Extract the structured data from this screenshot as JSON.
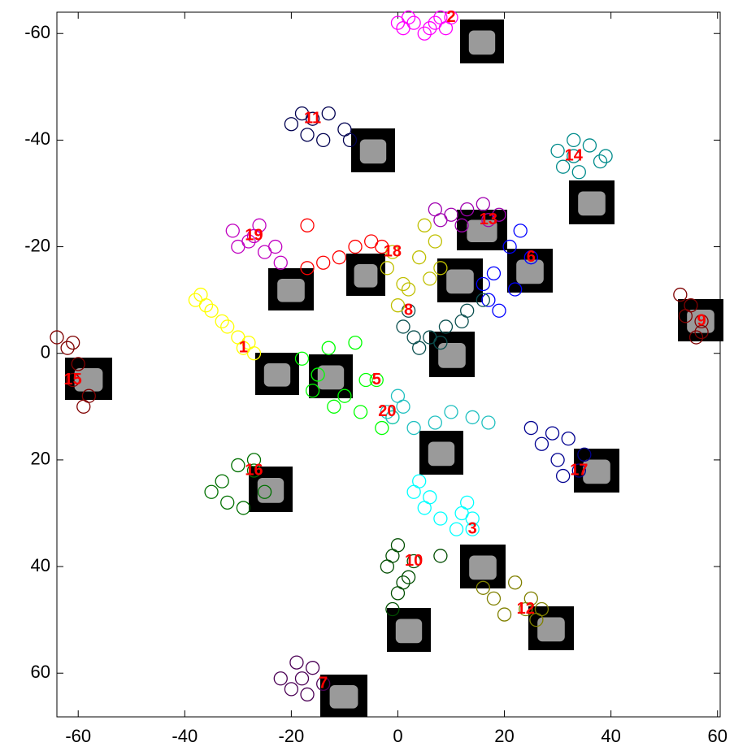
{
  "chart_data": {
    "type": "scatter",
    "xlim": [
      -64,
      60.5
    ],
    "ylim": [
      -64,
      68.2
    ],
    "y_reversed": true,
    "xticks": [
      -60,
      -40,
      -20,
      0,
      20,
      40,
      60
    ],
    "yticks": [
      -60,
      -40,
      -20,
      0,
      20,
      40,
      60
    ],
    "series": [
      {
        "name": "1",
        "color": "#ffff00",
        "x": [
          -29,
          -38,
          -35,
          -32,
          -30,
          -27,
          -36,
          -33,
          -37,
          -28
        ],
        "y": [
          -1,
          -10,
          -8,
          -5,
          -3,
          0,
          -9,
          -6,
          -11,
          -2
        ]
      },
      {
        "name": "2",
        "color": "#ff00ff",
        "x": [
          10,
          0,
          3,
          6,
          9,
          8,
          2,
          5,
          1,
          7
        ],
        "y": [
          -63,
          -62,
          -62,
          -61,
          -61,
          -63,
          -63,
          -60,
          -61,
          -62
        ]
      },
      {
        "name": "3",
        "color": "#00ffff",
        "x": [
          14,
          3,
          5,
          8,
          12,
          13,
          4,
          6,
          14,
          11
        ],
        "y": [
          33,
          26,
          29,
          31,
          30,
          28,
          24,
          27,
          31,
          33
        ]
      },
      {
        "name": "5",
        "color": "#00ff00",
        "x": [
          -4,
          -18,
          -15,
          -13,
          -10,
          -7,
          -3,
          -1,
          -16,
          -12,
          -8,
          -6
        ],
        "y": [
          5,
          1,
          4,
          -1,
          8,
          11,
          14,
          12,
          7,
          10,
          -2,
          5
        ]
      },
      {
        "name": "6",
        "color": "#0000ff",
        "x": [
          25,
          21,
          18,
          17,
          19,
          22,
          16,
          23
        ],
        "y": [
          -18,
          -20,
          -15,
          -10,
          -8,
          -12,
          -13,
          -23
        ]
      },
      {
        "name": "7",
        "color": "#4b0055",
        "x": [
          -14,
          -19,
          -22,
          -17,
          -20,
          -16,
          -18
        ],
        "y": [
          62,
          58,
          61,
          64,
          63,
          59,
          61
        ]
      },
      {
        "name": "8",
        "color": "#0a4f4f",
        "x": [
          2,
          1,
          3,
          4,
          6,
          9,
          13,
          16,
          8,
          12
        ],
        "y": [
          -8,
          -5,
          -3,
          -1,
          -3,
          -5,
          -8,
          -10,
          -2,
          -6
        ]
      },
      {
        "name": "9",
        "color": "#7f0000",
        "x": [
          57,
          53,
          55,
          56,
          57,
          54
        ],
        "y": [
          -6,
          -11,
          -9,
          -3,
          -4,
          -7
        ]
      },
      {
        "name": "10",
        "color": "#004d00",
        "x": [
          3,
          -2,
          0,
          2,
          0,
          -1,
          1,
          8,
          -1
        ],
        "y": [
          39,
          40,
          36,
          42,
          45,
          48,
          43,
          38,
          38
        ]
      },
      {
        "name": "11",
        "color": "#000050",
        "x": [
          -16,
          -20,
          -17,
          -13,
          -10,
          -9,
          -14,
          -18
        ],
        "y": [
          -44,
          -43,
          -41,
          -45,
          -42,
          -40,
          -40,
          -45
        ]
      },
      {
        "name": "12",
        "color": "#808000",
        "x": [
          24,
          16,
          18,
          22,
          25,
          26,
          20,
          27
        ],
        "y": [
          48,
          44,
          46,
          43,
          46,
          50,
          49,
          48
        ]
      },
      {
        "name": "13",
        "color": "#a000b0",
        "x": [
          17,
          7,
          10,
          13,
          16,
          19,
          12,
          8
        ],
        "y": [
          -25,
          -27,
          -26,
          -27,
          -28,
          -26,
          -24,
          -25
        ]
      },
      {
        "name": "14",
        "color": "#008b8b",
        "x": [
          33,
          30,
          33,
          36,
          38,
          34,
          31,
          39
        ],
        "y": [
          -37,
          -38,
          -40,
          -39,
          -36,
          -34,
          -35,
          -37
        ]
      },
      {
        "name": "15",
        "color": "#800000",
        "x": [
          -61,
          -62,
          -64,
          -60,
          -58,
          -59,
          -61
        ],
        "y": [
          5,
          -1,
          -3,
          2,
          8,
          10,
          -2
        ]
      },
      {
        "name": "16",
        "color": "#007000",
        "x": [
          -27,
          -30,
          -33,
          -35,
          -32,
          -29,
          -25,
          -27
        ],
        "y": [
          22,
          21,
          24,
          26,
          28,
          29,
          26,
          20
        ]
      },
      {
        "name": "17",
        "color": "#000090",
        "x": [
          34,
          25,
          27,
          29,
          30,
          32,
          35,
          31
        ],
        "y": [
          22,
          14,
          17,
          15,
          20,
          16,
          19,
          23
        ]
      },
      {
        "name": "18",
        "color": "#bfbf00",
        "x": [
          -1,
          5,
          7,
          8,
          6,
          4,
          2,
          0,
          -2,
          1
        ],
        "y": [
          -19,
          -24,
          -21,
          -16,
          -14,
          -18,
          -12,
          -9,
          -16,
          -13
        ]
      },
      {
        "name": "19",
        "color": "#c000c0",
        "x": [
          -27,
          -31,
          -28,
          -25,
          -22,
          -23,
          -30,
          -26
        ],
        "y": [
          -22,
          -23,
          -21,
          -19,
          -17,
          -20,
          -20,
          -24
        ]
      },
      {
        "name": "20",
        "color": "#20c0c0",
        "x": [
          -2,
          0,
          -1,
          1,
          3,
          7,
          10,
          14,
          17
        ],
        "y": [
          11,
          8,
          12,
          10,
          14,
          13,
          11,
          12,
          13
        ]
      },
      {
        "color": "#ff0000",
        "x": [
          -17,
          -14,
          -11,
          -8,
          -5,
          -3,
          -17
        ],
        "y": [
          -16,
          -17,
          -18,
          -20,
          -21,
          -20,
          -24
        ]
      }
    ]
  }
}
